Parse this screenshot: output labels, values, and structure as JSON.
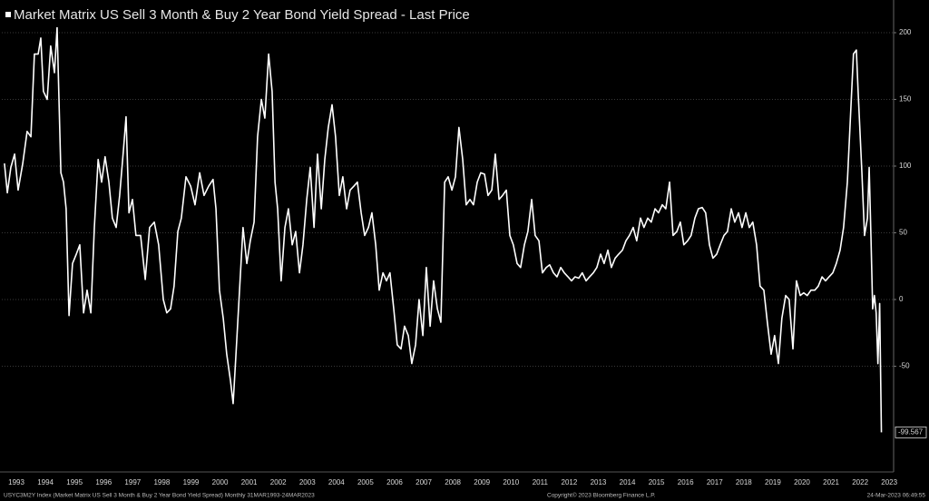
{
  "chart_data": {
    "type": "line",
    "title": "Market Matrix US Sell 3 Month & Buy 2 Year Bond Yield Spread - Last Price",
    "footer_left": "USYC3M2Y Index (Market Matrix US Sell 3 Month & Buy 2 Year Bond Yield Spread)  Monthly 31MAR1993-24MAR2023",
    "footer_center": "Copyright© 2023 Bloomberg Finance L.P.",
    "footer_right": "24-Mar-2023 06:49:55",
    "grid": true,
    "xlim": [
      1993,
      2023.65
    ],
    "ylim": [
      -125.85,
      224.5
    ],
    "yticks": [
      200,
      150,
      100,
      50,
      0,
      -50
    ],
    "xticks": [
      {
        "value": 1993.5,
        "label": "1993"
      },
      {
        "value": 1994.5,
        "label": "1994"
      },
      {
        "value": 1995.5,
        "label": "1995"
      },
      {
        "value": 1996.5,
        "label": "1996"
      },
      {
        "value": 1997.5,
        "label": "1997"
      },
      {
        "value": 1998.5,
        "label": "1998"
      },
      {
        "value": 1999.5,
        "label": "1999"
      },
      {
        "value": 2000.5,
        "label": "2000"
      },
      {
        "value": 2001.5,
        "label": "2001"
      },
      {
        "value": 2002.5,
        "label": "2002"
      },
      {
        "value": 2003.5,
        "label": "2003"
      },
      {
        "value": 2004.5,
        "label": "2004"
      },
      {
        "value": 2005.5,
        "label": "2005"
      },
      {
        "value": 2006.5,
        "label": "2006"
      },
      {
        "value": 2007.5,
        "label": "2007"
      },
      {
        "value": 2008.5,
        "label": "2008"
      },
      {
        "value": 2009.5,
        "label": "2009"
      },
      {
        "value": 2010.5,
        "label": "2010"
      },
      {
        "value": 2011.5,
        "label": "2011"
      },
      {
        "value": 2012.5,
        "label": "2012"
      },
      {
        "value": 2013.5,
        "label": "2013"
      },
      {
        "value": 2014.5,
        "label": "2014"
      },
      {
        "value": 2015.5,
        "label": "2015"
      },
      {
        "value": 2016.5,
        "label": "2016"
      },
      {
        "value": 2017.5,
        "label": "2017"
      },
      {
        "value": 2018.5,
        "label": "2018"
      },
      {
        "value": 2019.5,
        "label": "2019"
      },
      {
        "value": 2020.5,
        "label": "2020"
      },
      {
        "value": 2021.5,
        "label": "2021"
      },
      {
        "value": 2022.5,
        "label": "2022"
      },
      {
        "value": 2023.5,
        "label": "2023"
      }
    ],
    "x": [
      1993.09,
      1993.19,
      1993.31,
      1993.44,
      1993.56,
      1993.72,
      1993.87,
      1994.0,
      1994.12,
      1994.25,
      1994.34,
      1994.43,
      1994.56,
      1994.68,
      1994.81,
      1994.9,
      1995.03,
      1995.12,
      1995.21,
      1995.31,
      1995.43,
      1995.56,
      1995.68,
      1995.81,
      1995.93,
      1996.06,
      1996.18,
      1996.31,
      1996.43,
      1996.55,
      1996.68,
      1996.8,
      1996.93,
      1997.05,
      1997.18,
      1997.27,
      1997.37,
      1997.49,
      1997.61,
      1997.77,
      1997.93,
      1998.08,
      1998.24,
      1998.39,
      1998.55,
      1998.67,
      1998.8,
      1998.92,
      1999.05,
      1999.17,
      1999.33,
      1999.49,
      1999.64,
      1999.8,
      1999.95,
      2000.11,
      2000.26,
      2000.36,
      2000.48,
      2000.61,
      2000.73,
      2000.86,
      2000.95,
      2001.04,
      2001.17,
      2001.29,
      2001.42,
      2001.54,
      2001.67,
      2001.79,
      2001.92,
      2002.04,
      2002.17,
      2002.29,
      2002.39,
      2002.48,
      2002.6,
      2002.73,
      2002.85,
      2002.98,
      2003.1,
      2003.23,
      2003.35,
      2003.48,
      2003.6,
      2003.73,
      2003.85,
      2003.98,
      2004.1,
      2004.22,
      2004.35,
      2004.47,
      2004.6,
      2004.72,
      2004.85,
      2004.97,
      2005.1,
      2005.22,
      2005.35,
      2005.47,
      2005.6,
      2005.72,
      2005.85,
      2005.97,
      2006.1,
      2006.22,
      2006.34,
      2006.47,
      2006.59,
      2006.72,
      2006.84,
      2006.97,
      2007.09,
      2007.22,
      2007.34,
      2007.47,
      2007.59,
      2007.72,
      2007.84,
      2007.97,
      2008.09,
      2008.22,
      2008.34,
      2008.47,
      2008.59,
      2008.71,
      2008.84,
      2008.96,
      2009.09,
      2009.21,
      2009.34,
      2009.46,
      2009.59,
      2009.71,
      2009.84,
      2009.96,
      2010.09,
      2010.21,
      2010.34,
      2010.46,
      2010.58,
      2010.71,
      2010.83,
      2010.96,
      2011.08,
      2011.21,
      2011.33,
      2011.46,
      2011.58,
      2011.71,
      2011.83,
      2011.96,
      2012.08,
      2012.21,
      2012.33,
      2012.46,
      2012.58,
      2012.7,
      2012.83,
      2012.95,
      2013.08,
      2013.2,
      2013.33,
      2013.45,
      2013.58,
      2013.7,
      2013.83,
      2013.95,
      2014.08,
      2014.2,
      2014.33,
      2014.45,
      2014.57,
      2014.7,
      2014.82,
      2014.95,
      2015.07,
      2015.2,
      2015.32,
      2015.45,
      2015.57,
      2015.7,
      2015.82,
      2015.95,
      2016.07,
      2016.2,
      2016.32,
      2016.44,
      2016.57,
      2016.69,
      2016.82,
      2016.94,
      2017.07,
      2017.19,
      2017.32,
      2017.44,
      2017.57,
      2017.69,
      2017.82,
      2017.94,
      2018.07,
      2018.19,
      2018.32,
      2018.44,
      2018.57,
      2018.69,
      2018.81,
      2018.94,
      2019.06,
      2019.19,
      2019.31,
      2019.44,
      2019.56,
      2019.69,
      2019.81,
      2019.94,
      2020.06,
      2020.19,
      2020.31,
      2020.44,
      2020.56,
      2020.68,
      2020.81,
      2020.94,
      2021.06,
      2021.19,
      2021.31,
      2021.43,
      2021.56,
      2021.68,
      2021.81,
      2021.93,
      2022.06,
      2022.18,
      2022.27,
      2022.37,
      2022.43,
      2022.56,
      2022.65,
      2022.75,
      2022.81,
      2022.87,
      2022.93,
      2022.99,
      2023.05,
      2023.11,
      2023.17,
      2023.23
    ],
    "series": [
      {
        "name": "Market Matrix US Sell 3 Month & Buy 2 Year Bond Yield Spread - Last Price",
        "color": "#ffffff",
        "values": [
          102,
          80,
          99,
          109,
          82,
          102,
          126,
          122,
          184,
          184,
          196,
          156,
          150,
          190,
          170,
          204,
          95,
          88,
          68,
          -12,
          27,
          34,
          41,
          -10,
          7,
          -10,
          54,
          105,
          88,
          107,
          88,
          61,
          54,
          78,
          112,
          137,
          65,
          75,
          48,
          48,
          15,
          54,
          58,
          41,
          0,
          -10,
          -7,
          10,
          51,
          61,
          92,
          85,
          71,
          95,
          78,
          85,
          90,
          68,
          7,
          -14,
          -41,
          -61,
          -78,
          -44,
          7,
          54,
          27,
          44,
          58,
          122,
          150,
          136,
          184,
          156,
          88,
          68,
          14,
          54,
          68,
          41,
          51,
          20,
          41,
          75,
          99,
          54,
          109,
          68,
          105,
          129,
          146,
          122,
          78,
          92,
          68,
          82,
          85,
          88,
          65,
          48,
          54,
          65,
          41,
          7,
          20,
          14,
          20,
          -7,
          -34,
          -37,
          -20,
          -27,
          -48,
          -34,
          0,
          -27,
          24,
          -20,
          14,
          -7,
          -17,
          88,
          92,
          82,
          92,
          129,
          105,
          71,
          75,
          71,
          88,
          95,
          94,
          78,
          82,
          109,
          75,
          78,
          82,
          48,
          41,
          27,
          24,
          41,
          51,
          75,
          48,
          44,
          20,
          24,
          26,
          20,
          17,
          24,
          20,
          17,
          14,
          17,
          16,
          20,
          14,
          17,
          20,
          24,
          34,
          27,
          37,
          24,
          31,
          34,
          37,
          44,
          48,
          54,
          44,
          61,
          54,
          61,
          58,
          68,
          65,
          71,
          68,
          88,
          48,
          51,
          58,
          41,
          44,
          48,
          61,
          68,
          69,
          65,
          41,
          31,
          34,
          41,
          48,
          51,
          68,
          58,
          65,
          54,
          65,
          54,
          58,
          41,
          10,
          7,
          -17,
          -41,
          -27,
          -48,
          -14,
          3,
          0,
          -37,
          14,
          3,
          5,
          3,
          7,
          7,
          10,
          17,
          14,
          17,
          20,
          27,
          37,
          54,
          88,
          143,
          184,
          187,
          156,
          95,
          48,
          61,
          99,
          48,
          -7,
          3,
          -10,
          -48,
          -3,
          -99.567
        ]
      }
    ]
  }
}
